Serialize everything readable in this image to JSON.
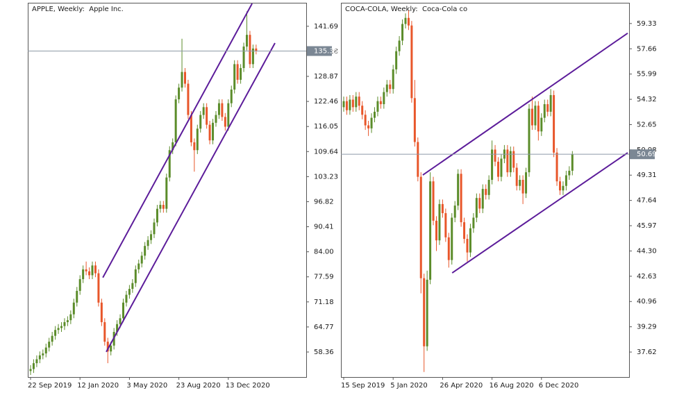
{
  "chart_data": [
    {
      "type": "candlestick",
      "title": "APPLE, Weekly:  Apple Inc.",
      "categories": [
        "22 Sep 2019",
        null,
        null,
        null,
        null,
        null,
        null,
        null,
        null,
        null,
        null,
        null,
        null,
        null,
        null,
        null,
        "12 Jan 2020",
        null,
        null,
        null,
        null,
        null,
        null,
        null,
        null,
        null,
        null,
        null,
        null,
        null,
        null,
        null,
        "3 May 2020",
        null,
        null,
        null,
        null,
        null,
        null,
        null,
        null,
        null,
        null,
        null,
        null,
        null,
        null,
        null,
        "23 Aug 2020",
        null,
        null,
        null,
        null,
        null,
        null,
        null,
        null,
        null,
        null,
        null,
        null,
        null,
        null,
        null,
        "13 Dec 2020",
        null,
        null,
        null,
        null,
        null,
        null,
        null,
        null,
        null
      ],
      "open": [
        53.5,
        54.0,
        55.5,
        56.5,
        57.5,
        58.0,
        59.5,
        61.0,
        62.5,
        64.0,
        64.5,
        65.0,
        66.0,
        66.5,
        68.0,
        71.0,
        74.0,
        77.0,
        79.5,
        79.0,
        78.0,
        80.5,
        78.5,
        71.0,
        66.0,
        61.0,
        58.5,
        60.0,
        63.5,
        65.5,
        67.0,
        71.0,
        73.0,
        74.5,
        76.0,
        79.5,
        81.0,
        83.0,
        85.5,
        87.0,
        88.5,
        91.5,
        95.0,
        96.0,
        95.0,
        103.0,
        110.0,
        112.0,
        123.0,
        126.0,
        130.0,
        127.0,
        119.0,
        112.0,
        110.0,
        115.5,
        119.0,
        121.0,
        116.5,
        112.5,
        117.0,
        119.0,
        122.0,
        118.5,
        116.0,
        122.0,
        125.5,
        132.0,
        128.0,
        131.0,
        136.5,
        139.5,
        132.0,
        136.0
      ],
      "high": [
        55.0,
        56.5,
        57.5,
        58.5,
        59.0,
        60.5,
        62.0,
        63.5,
        65.0,
        65.5,
        66.0,
        67.0,
        67.5,
        69.0,
        72.0,
        75.0,
        78.0,
        80.5,
        81.5,
        80.0,
        81.5,
        81.5,
        79.5,
        72.0,
        67.0,
        62.0,
        61.0,
        64.5,
        66.5,
        68.0,
        72.0,
        74.0,
        75.5,
        77.0,
        80.5,
        82.0,
        84.0,
        86.5,
        88.0,
        89.5,
        92.5,
        96.0,
        97.0,
        97.0,
        104.0,
        111.0,
        113.0,
        124.0,
        127.0,
        138.5,
        131.0,
        128.0,
        120.0,
        113.0,
        116.5,
        120.0,
        122.0,
        122.0,
        117.5,
        118.0,
        120.0,
        123.0,
        123.0,
        119.5,
        123.0,
        126.5,
        133.0,
        133.0,
        132.0,
        137.5,
        145.5,
        140.5,
        137.0,
        137.0
      ],
      "low": [
        52.5,
        53.0,
        54.5,
        55.5,
        56.5,
        57.0,
        58.5,
        60.0,
        61.5,
        63.0,
        63.5,
        64.0,
        65.0,
        65.5,
        67.0,
        70.0,
        73.0,
        76.0,
        78.0,
        77.0,
        77.0,
        77.5,
        70.0,
        65.0,
        60.0,
        55.5,
        57.5,
        59.0,
        62.5,
        64.5,
        66.0,
        70.0,
        72.0,
        73.5,
        75.0,
        78.5,
        80.0,
        82.0,
        84.5,
        86.0,
        87.5,
        90.5,
        94.0,
        94.0,
        94.0,
        102.0,
        109.0,
        111.0,
        122.0,
        125.0,
        126.0,
        118.0,
        111.0,
        104.5,
        109.0,
        114.5,
        118.0,
        115.5,
        111.5,
        111.5,
        116.0,
        118.0,
        117.5,
        115.0,
        115.0,
        121.0,
        124.5,
        127.0,
        127.0,
        130.0,
        135.5,
        131.0,
        131.0,
        134.5
      ],
      "close": [
        54.0,
        55.5,
        56.5,
        57.5,
        58.0,
        59.5,
        61.0,
        62.5,
        64.0,
        64.5,
        65.0,
        66.0,
        66.5,
        68.0,
        71.0,
        74.0,
        77.0,
        79.5,
        79.0,
        78.0,
        80.5,
        78.5,
        71.0,
        66.0,
        61.0,
        58.5,
        60.0,
        63.5,
        65.5,
        67.0,
        71.0,
        73.0,
        74.5,
        76.0,
        79.5,
        81.0,
        83.0,
        85.5,
        87.0,
        88.5,
        91.5,
        95.0,
        96.0,
        95.0,
        103.0,
        110.0,
        112.0,
        123.0,
        126.0,
        130.0,
        127.0,
        119.0,
        112.0,
        110.0,
        115.5,
        119.0,
        121.0,
        116.5,
        112.5,
        117.0,
        119.0,
        122.0,
        118.5,
        116.0,
        122.0,
        125.5,
        132.0,
        128.0,
        131.0,
        136.5,
        139.5,
        132.0,
        136.0,
        135.35
      ],
      "ylim": [
        51.96,
        147.7
      ],
      "yticks": [
        141.69,
        135.28,
        128.87,
        122.46,
        116.05,
        109.64,
        103.23,
        96.82,
        90.41,
        {
          "value": 84,
          "label": "84.00"
        },
        77.59,
        71.18,
        64.77,
        58.36
      ],
      "channels": [
        {
          "x": [
            23.4,
            71.7
          ],
          "y": [
            77.4,
            147.5
          ]
        },
        {
          "x": [
            24.5,
            79.1
          ],
          "y": [
            58.4,
            137.4
          ]
        }
      ],
      "up_color": "#5b8c2a",
      "down_color": "#e8562a",
      "channel_color": "#5c1c9a"
    },
    {
      "type": "candlestick",
      "title": "COCA-COLA, Weekly:  Coca-Cola co",
      "categories": [
        "15 Sep 2019",
        null,
        null,
        null,
        null,
        null,
        null,
        null,
        null,
        null,
        null,
        null,
        null,
        null,
        null,
        null,
        "5 Jan 2020",
        null,
        null,
        null,
        null,
        null,
        null,
        null,
        null,
        null,
        null,
        null,
        null,
        null,
        null,
        null,
        "26 Apr 2020",
        null,
        null,
        null,
        null,
        null,
        null,
        null,
        null,
        null,
        null,
        null,
        null,
        null,
        null,
        null,
        "16 Aug 2020",
        null,
        null,
        null,
        null,
        null,
        null,
        null,
        null,
        null,
        null,
        null,
        null,
        null,
        null,
        null,
        "6 Dec 2020",
        null,
        null,
        null,
        null,
        null,
        null,
        null,
        null,
        null,
        null
      ],
      "open": [
        53.8,
        54.2,
        53.6,
        54.3,
        53.8,
        54.5,
        53.9,
        53.3,
        52.6,
        52.4,
        53.1,
        53.5,
        54.2,
        54.0,
        54.8,
        55.3,
        55.0,
        56.3,
        57.5,
        58.2,
        59.3,
        59.7,
        59.2,
        54.4,
        51.5,
        49.2,
        42.5,
        38.0,
        42.4,
        48.9,
        46.3,
        45.0,
        47.4,
        46.8,
        45.2,
        43.7,
        46.5,
        47.3,
        49.4,
        46.2,
        45.1,
        44.2,
        45.8,
        46.5,
        47.8,
        47.1,
        48.4,
        48.0,
        49.0,
        51.0,
        50.2,
        49.2,
        50.4,
        51.0,
        49.5,
        50.9,
        49.8,
        48.6,
        49.0,
        48.1,
        49.5,
        53.7,
        52.6,
        53.9,
        52.2,
        53.1,
        54.0,
        53.5,
        54.6,
        50.8,
        48.9,
        48.3,
        48.6,
        49.3,
        49.6
      ],
      "high": [
        54.5,
        54.5,
        54.6,
        54.6,
        54.8,
        54.8,
        54.2,
        53.6,
        52.9,
        53.4,
        53.8,
        54.5,
        54.5,
        55.1,
        55.6,
        55.6,
        56.6,
        57.8,
        58.5,
        59.6,
        60.0,
        60.2,
        59.5,
        55.6,
        51.8,
        49.5,
        42.8,
        43.0,
        49.5,
        49.2,
        46.6,
        47.7,
        47.7,
        47.1,
        45.5,
        46.8,
        47.6,
        49.7,
        49.7,
        46.5,
        45.4,
        46.1,
        46.8,
        48.1,
        48.1,
        48.7,
        48.7,
        49.3,
        51.6,
        51.3,
        50.5,
        50.7,
        51.3,
        51.3,
        51.2,
        51.2,
        50.1,
        49.3,
        49.3,
        49.8,
        54.0,
        54.5,
        54.2,
        54.2,
        53.4,
        54.3,
        54.3,
        55.0,
        54.9,
        51.1,
        49.2,
        48.9,
        49.6,
        49.9,
        50.9
      ],
      "low": [
        53.5,
        53.3,
        53.3,
        53.5,
        53.5,
        53.6,
        53.0,
        52.3,
        51.9,
        52.1,
        52.8,
        53.2,
        53.7,
        53.7,
        54.5,
        54.7,
        54.7,
        56.0,
        57.2,
        57.9,
        59.0,
        58.9,
        54.1,
        51.2,
        48.9,
        41.5,
        36.3,
        37.7,
        42.1,
        46.0,
        44.3,
        44.7,
        46.5,
        44.9,
        43.2,
        43.4,
        46.2,
        47.0,
        45.9,
        44.8,
        43.6,
        43.9,
        45.5,
        46.2,
        46.8,
        46.8,
        47.7,
        47.7,
        48.7,
        49.9,
        48.9,
        48.9,
        50.1,
        49.2,
        49.2,
        49.5,
        48.3,
        48.3,
        47.4,
        47.8,
        49.2,
        52.3,
        52.3,
        51.6,
        51.9,
        52.8,
        53.2,
        53.2,
        50.5,
        48.6,
        48.0,
        48.0,
        48.3,
        49.0,
        49.3
      ],
      "close": [
        54.2,
        53.6,
        54.3,
        53.8,
        54.5,
        53.9,
        53.3,
        52.6,
        52.4,
        53.1,
        53.5,
        54.2,
        54.0,
        54.8,
        55.3,
        55.0,
        56.3,
        57.5,
        58.2,
        59.3,
        59.7,
        59.2,
        54.4,
        51.5,
        49.2,
        42.5,
        38.0,
        42.4,
        48.9,
        46.3,
        45.0,
        47.4,
        46.8,
        45.2,
        43.7,
        46.5,
        47.3,
        49.4,
        46.2,
        45.1,
        44.2,
        45.8,
        46.5,
        47.8,
        47.1,
        48.4,
        48.0,
        49.0,
        51.0,
        50.2,
        49.2,
        50.4,
        51.0,
        49.5,
        50.9,
        49.8,
        48.6,
        49.0,
        48.1,
        49.5,
        53.7,
        52.6,
        53.9,
        52.2,
        53.1,
        54.0,
        53.5,
        54.6,
        50.8,
        48.9,
        48.3,
        48.6,
        49.3,
        49.6,
        50.69
      ],
      "ylim": [
        35.97,
        60.7
      ],
      "yticks": [
        59.33,
        57.66,
        55.99,
        54.32,
        52.65,
        50.98,
        49.31,
        47.64,
        45.97,
        {
          "value": 44.3,
          "label": "44.30"
        },
        42.63,
        40.96,
        39.29,
        37.62
      ],
      "channels": [
        {
          "x": [
            25.6,
            91.9
          ],
          "y": [
            49.32,
            58.69
          ]
        },
        {
          "x": [
            35.1,
            91.9
          ],
          "y": [
            42.85,
            50.79
          ]
        }
      ],
      "up_color": "#5b8c2a",
      "down_color": "#e8562a",
      "channel_color": "#5c1c9a"
    }
  ]
}
